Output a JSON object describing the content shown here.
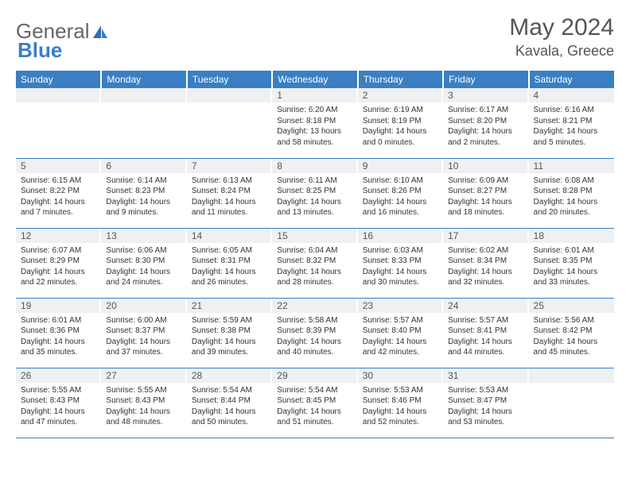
{
  "brand": {
    "part1": "General",
    "part2": "Blue"
  },
  "title": "May 2024",
  "location": "Kavala, Greece",
  "colors": {
    "header_bg": "#3a7fc4",
    "header_text": "#ffffff",
    "daynum_bg": "#eef0f2",
    "rule": "#3a7fc4",
    "body_text": "#333333",
    "title_text": "#555555"
  },
  "weekdays": [
    "Sunday",
    "Monday",
    "Tuesday",
    "Wednesday",
    "Thursday",
    "Friday",
    "Saturday"
  ],
  "weeks": [
    [
      null,
      null,
      null,
      {
        "n": "1",
        "sr": "Sunrise: 6:20 AM",
        "ss": "Sunset: 8:18 PM",
        "dl": "Daylight: 13 hours and 58 minutes."
      },
      {
        "n": "2",
        "sr": "Sunrise: 6:19 AM",
        "ss": "Sunset: 8:19 PM",
        "dl": "Daylight: 14 hours and 0 minutes."
      },
      {
        "n": "3",
        "sr": "Sunrise: 6:17 AM",
        "ss": "Sunset: 8:20 PM",
        "dl": "Daylight: 14 hours and 2 minutes."
      },
      {
        "n": "4",
        "sr": "Sunrise: 6:16 AM",
        "ss": "Sunset: 8:21 PM",
        "dl": "Daylight: 14 hours and 5 minutes."
      }
    ],
    [
      {
        "n": "5",
        "sr": "Sunrise: 6:15 AM",
        "ss": "Sunset: 8:22 PM",
        "dl": "Daylight: 14 hours and 7 minutes."
      },
      {
        "n": "6",
        "sr": "Sunrise: 6:14 AM",
        "ss": "Sunset: 8:23 PM",
        "dl": "Daylight: 14 hours and 9 minutes."
      },
      {
        "n": "7",
        "sr": "Sunrise: 6:13 AM",
        "ss": "Sunset: 8:24 PM",
        "dl": "Daylight: 14 hours and 11 minutes."
      },
      {
        "n": "8",
        "sr": "Sunrise: 6:11 AM",
        "ss": "Sunset: 8:25 PM",
        "dl": "Daylight: 14 hours and 13 minutes."
      },
      {
        "n": "9",
        "sr": "Sunrise: 6:10 AM",
        "ss": "Sunset: 8:26 PM",
        "dl": "Daylight: 14 hours and 16 minutes."
      },
      {
        "n": "10",
        "sr": "Sunrise: 6:09 AM",
        "ss": "Sunset: 8:27 PM",
        "dl": "Daylight: 14 hours and 18 minutes."
      },
      {
        "n": "11",
        "sr": "Sunrise: 6:08 AM",
        "ss": "Sunset: 8:28 PM",
        "dl": "Daylight: 14 hours and 20 minutes."
      }
    ],
    [
      {
        "n": "12",
        "sr": "Sunrise: 6:07 AM",
        "ss": "Sunset: 8:29 PM",
        "dl": "Daylight: 14 hours and 22 minutes."
      },
      {
        "n": "13",
        "sr": "Sunrise: 6:06 AM",
        "ss": "Sunset: 8:30 PM",
        "dl": "Daylight: 14 hours and 24 minutes."
      },
      {
        "n": "14",
        "sr": "Sunrise: 6:05 AM",
        "ss": "Sunset: 8:31 PM",
        "dl": "Daylight: 14 hours and 26 minutes."
      },
      {
        "n": "15",
        "sr": "Sunrise: 6:04 AM",
        "ss": "Sunset: 8:32 PM",
        "dl": "Daylight: 14 hours and 28 minutes."
      },
      {
        "n": "16",
        "sr": "Sunrise: 6:03 AM",
        "ss": "Sunset: 8:33 PM",
        "dl": "Daylight: 14 hours and 30 minutes."
      },
      {
        "n": "17",
        "sr": "Sunrise: 6:02 AM",
        "ss": "Sunset: 8:34 PM",
        "dl": "Daylight: 14 hours and 32 minutes."
      },
      {
        "n": "18",
        "sr": "Sunrise: 6:01 AM",
        "ss": "Sunset: 8:35 PM",
        "dl": "Daylight: 14 hours and 33 minutes."
      }
    ],
    [
      {
        "n": "19",
        "sr": "Sunrise: 6:01 AM",
        "ss": "Sunset: 8:36 PM",
        "dl": "Daylight: 14 hours and 35 minutes."
      },
      {
        "n": "20",
        "sr": "Sunrise: 6:00 AM",
        "ss": "Sunset: 8:37 PM",
        "dl": "Daylight: 14 hours and 37 minutes."
      },
      {
        "n": "21",
        "sr": "Sunrise: 5:59 AM",
        "ss": "Sunset: 8:38 PM",
        "dl": "Daylight: 14 hours and 39 minutes."
      },
      {
        "n": "22",
        "sr": "Sunrise: 5:58 AM",
        "ss": "Sunset: 8:39 PM",
        "dl": "Daylight: 14 hours and 40 minutes."
      },
      {
        "n": "23",
        "sr": "Sunrise: 5:57 AM",
        "ss": "Sunset: 8:40 PM",
        "dl": "Daylight: 14 hours and 42 minutes."
      },
      {
        "n": "24",
        "sr": "Sunrise: 5:57 AM",
        "ss": "Sunset: 8:41 PM",
        "dl": "Daylight: 14 hours and 44 minutes."
      },
      {
        "n": "25",
        "sr": "Sunrise: 5:56 AM",
        "ss": "Sunset: 8:42 PM",
        "dl": "Daylight: 14 hours and 45 minutes."
      }
    ],
    [
      {
        "n": "26",
        "sr": "Sunrise: 5:55 AM",
        "ss": "Sunset: 8:43 PM",
        "dl": "Daylight: 14 hours and 47 minutes."
      },
      {
        "n": "27",
        "sr": "Sunrise: 5:55 AM",
        "ss": "Sunset: 8:43 PM",
        "dl": "Daylight: 14 hours and 48 minutes."
      },
      {
        "n": "28",
        "sr": "Sunrise: 5:54 AM",
        "ss": "Sunset: 8:44 PM",
        "dl": "Daylight: 14 hours and 50 minutes."
      },
      {
        "n": "29",
        "sr": "Sunrise: 5:54 AM",
        "ss": "Sunset: 8:45 PM",
        "dl": "Daylight: 14 hours and 51 minutes."
      },
      {
        "n": "30",
        "sr": "Sunrise: 5:53 AM",
        "ss": "Sunset: 8:46 PM",
        "dl": "Daylight: 14 hours and 52 minutes."
      },
      {
        "n": "31",
        "sr": "Sunrise: 5:53 AM",
        "ss": "Sunset: 8:47 PM",
        "dl": "Daylight: 14 hours and 53 minutes."
      },
      null
    ]
  ]
}
